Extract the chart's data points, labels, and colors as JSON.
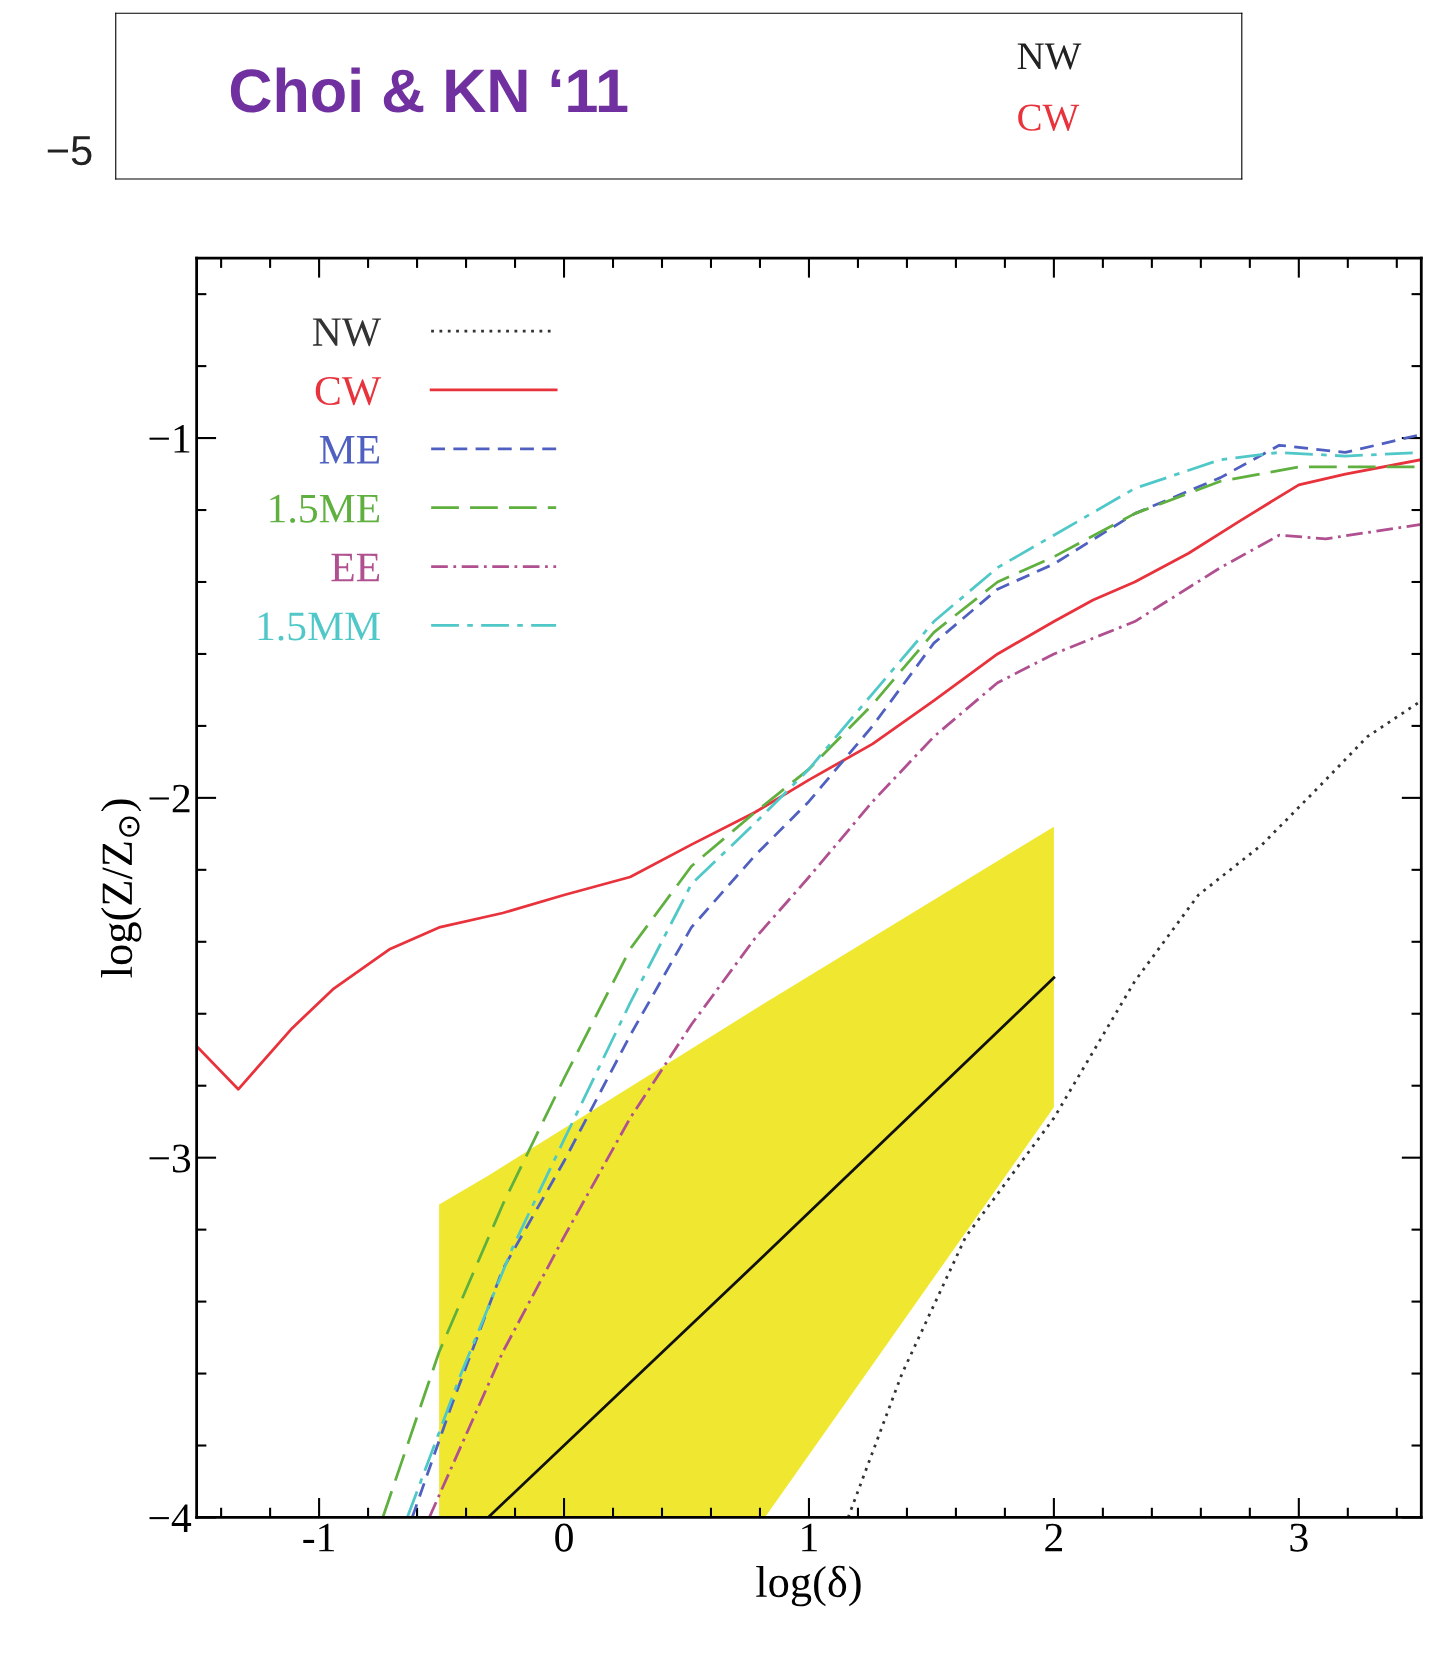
{
  "chart_data": [
    {
      "type": "other",
      "annotations": [
        "−5",
        "Choi & KN ‘11",
        "NW",
        "CW"
      ]
    },
    {
      "type": "line",
      "xlabel": "log(δ)",
      "ylabel": "log(Z/Z$_{⊙}$)",
      "xlim": [
        -1.5,
        3.5
      ],
      "ylim": [
        -4,
        -0.5
      ],
      "xticks": [
        -1,
        0,
        1,
        2,
        3
      ],
      "yticks": [
        -4,
        -3,
        -2,
        -1
      ],
      "grid": false,
      "legend": "top left",
      "series": [
        {
          "name": "NW",
          "color": "#333333",
          "line_style": "dotted",
          "x": [
            1.16,
            1.38,
            1.64,
            2,
            2.33,
            2.59,
            2.85,
            3.11,
            3.28,
            3.5
          ],
          "values": [
            -4,
            -3.6,
            -3.22,
            -2.89,
            -2.51,
            -2.27,
            -2.13,
            -1.95,
            -1.83,
            -1.73
          ]
        },
        {
          "name": "CW",
          "color": "#e8323c",
          "line_style": "solid",
          "x": [
            -1.5,
            -1.33,
            -1.11,
            -0.94,
            -0.71,
            -0.51,
            -0.25,
            0,
            0.27,
            0.52,
            0.78,
            1,
            1.26,
            1.51,
            1.77,
            2,
            2.16,
            2.33,
            2.55,
            2.76,
            3,
            3.19,
            3.5
          ],
          "values": [
            -2.69,
            -2.81,
            -2.64,
            -2.53,
            -2.42,
            -2.36,
            -2.32,
            -2.27,
            -2.22,
            -2.13,
            -2.04,
            -1.95,
            -1.85,
            -1.73,
            -1.6,
            -1.51,
            -1.45,
            -1.4,
            -1.32,
            -1.23,
            -1.13,
            -1.1,
            -1.06
          ]
        },
        {
          "name": "ME",
          "color": "#5060c0",
          "line_style": "dashed",
          "x": [
            -0.62,
            -0.46,
            -0.25,
            0,
            0.27,
            0.52,
            0.78,
            1,
            1.26,
            1.51,
            1.77,
            2,
            2.33,
            2.68,
            2.92,
            3.19,
            3.5
          ],
          "values": [
            -4,
            -3.69,
            -3.31,
            -3.01,
            -2.66,
            -2.36,
            -2.16,
            -2.01,
            -1.8,
            -1.57,
            -1.42,
            -1.35,
            -1.21,
            -1.11,
            -1.02,
            -1.04,
            -0.99
          ]
        },
        {
          "name": "1.5ME",
          "color": "#60b040",
          "line_style": "longdash",
          "x": [
            -0.74,
            -0.51,
            -0.25,
            0,
            0.27,
            0.52,
            0.78,
            1,
            1.26,
            1.51,
            1.77,
            2,
            2.33,
            2.68,
            3,
            3.5
          ],
          "values": [
            -4,
            -3.54,
            -3.13,
            -2.78,
            -2.42,
            -2.19,
            -2.04,
            -1.92,
            -1.74,
            -1.54,
            -1.4,
            -1.33,
            -1.21,
            -1.12,
            -1.08,
            -1.08
          ]
        },
        {
          "name": "EE",
          "color": "#b05090",
          "line_style": "dashdot",
          "x": [
            -0.55,
            -0.25,
            0,
            0.27,
            0.52,
            0.78,
            1,
            1.26,
            1.51,
            1.77,
            2,
            2.33,
            2.68,
            2.92,
            3.11,
            3.5
          ],
          "values": [
            -4,
            -3.54,
            -3.22,
            -2.89,
            -2.63,
            -2.39,
            -2.22,
            -2.01,
            -1.83,
            -1.68,
            -1.6,
            -1.51,
            -1.36,
            -1.27,
            -1.28,
            -1.24
          ]
        },
        {
          "name": "1.5MM",
          "color": "#50c8c8",
          "line_style": "dashdotlong",
          "x": [
            -0.64,
            -0.42,
            -0.21,
            0,
            0.27,
            0.52,
            0.78,
            1,
            1.26,
            1.51,
            1.77,
            2,
            2.33,
            2.68,
            2.92,
            3.19,
            3.5
          ],
          "values": [
            -4,
            -3.6,
            -3.25,
            -2.95,
            -2.57,
            -2.24,
            -2.07,
            -1.92,
            -1.71,
            -1.51,
            -1.36,
            -1.27,
            -1.14,
            -1.06,
            -1.04,
            -1.05,
            -1.04
          ]
        },
        {
          "color": "#111111",
          "line_style": "solid",
          "x": [
            -0.51,
            -0.31,
            0.82,
            2
          ],
          "values": [
            null,
            -4,
            -3.27,
            -2.5
          ],
          "lower": [
            -4,
            -4,
            -4,
            -2.86
          ],
          "upper": [
            -3.13,
            -3.05,
            -2.57,
            -2.08
          ]
        }
      ]
    }
  ]
}
